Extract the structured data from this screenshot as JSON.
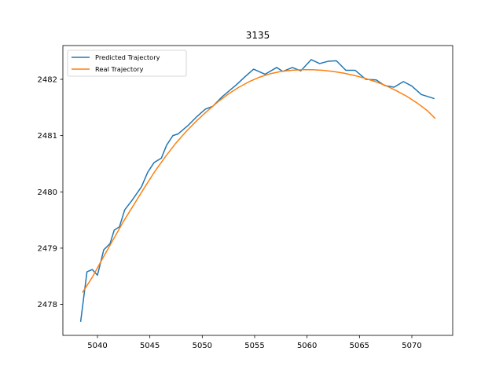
{
  "chart_data": {
    "type": "line",
    "title": "3135",
    "xlabel": "",
    "ylabel": "",
    "xlim": [
      5036.7,
      5073.9
    ],
    "ylim": [
      2477.45,
      2482.6
    ],
    "xticks": [
      5040,
      5045,
      5050,
      5055,
      5060,
      5065,
      5070
    ],
    "yticks": [
      2478,
      2479,
      2480,
      2481,
      2482
    ],
    "grid": false,
    "legend_position": "upper left",
    "series": [
      {
        "name": "Predicted Trajectory",
        "color": "#1f77b4",
        "x": [
          5038.4,
          5039.0,
          5039.5,
          5040.0,
          5040.6,
          5041.2,
          5041.6,
          5042.1,
          5042.6,
          5043.3,
          5044.2,
          5044.8,
          5045.4,
          5046.1,
          5046.6,
          5047.2,
          5047.7,
          5048.7,
          5049.5,
          5050.3,
          5051.0,
          5051.9,
          5053.3,
          5054.1,
          5054.9,
          5056.0,
          5057.1,
          5057.7,
          5058.6,
          5059.4,
          5060.4,
          5061.2,
          5062.0,
          5062.8,
          5063.7,
          5064.6,
          5065.6,
          5066.6,
          5067.4,
          5068.3,
          5069.2,
          5070.0,
          5070.9,
          5072.1
        ],
        "y": [
          2477.7,
          2478.58,
          2478.62,
          2478.52,
          2478.97,
          2479.08,
          2479.32,
          2479.38,
          2479.68,
          2479.85,
          2480.09,
          2480.35,
          2480.52,
          2480.6,
          2480.83,
          2481.0,
          2481.03,
          2481.19,
          2481.34,
          2481.47,
          2481.52,
          2481.69,
          2481.91,
          2482.05,
          2482.18,
          2482.09,
          2482.21,
          2482.14,
          2482.21,
          2482.15,
          2482.35,
          2482.28,
          2482.32,
          2482.33,
          2482.16,
          2482.16,
          2482.0,
          2481.99,
          2481.89,
          2481.86,
          2481.96,
          2481.88,
          2481.73,
          2481.66
        ]
      },
      {
        "name": "Real Trajectory",
        "color": "#ff7f0e",
        "x": [
          5038.6,
          5039.5,
          5040.5,
          5041.5,
          5042.5,
          5043.5,
          5044.5,
          5045.5,
          5046.5,
          5047.5,
          5048.5,
          5049.5,
          5050.5,
          5051.5,
          5052.5,
          5053.5,
          5054.5,
          5055.5,
          5056.5,
          5057.5,
          5058.5,
          5059.5,
          5060.5,
          5061.5,
          5062.5,
          5063.5,
          5064.5,
          5065.5,
          5066.5,
          5067.5,
          5068.5,
          5069.5,
          5070.5,
          5071.5,
          5072.2
        ],
        "y": [
          2478.22,
          2478.48,
          2478.82,
          2479.15,
          2479.48,
          2479.78,
          2480.08,
          2480.37,
          2480.63,
          2480.87,
          2481.08,
          2481.27,
          2481.44,
          2481.6,
          2481.74,
          2481.86,
          2481.96,
          2482.04,
          2482.1,
          2482.14,
          2482.16,
          2482.17,
          2482.17,
          2482.16,
          2482.14,
          2482.11,
          2482.07,
          2482.02,
          2481.96,
          2481.89,
          2481.8,
          2481.7,
          2481.58,
          2481.44,
          2481.31
        ]
      }
    ]
  }
}
